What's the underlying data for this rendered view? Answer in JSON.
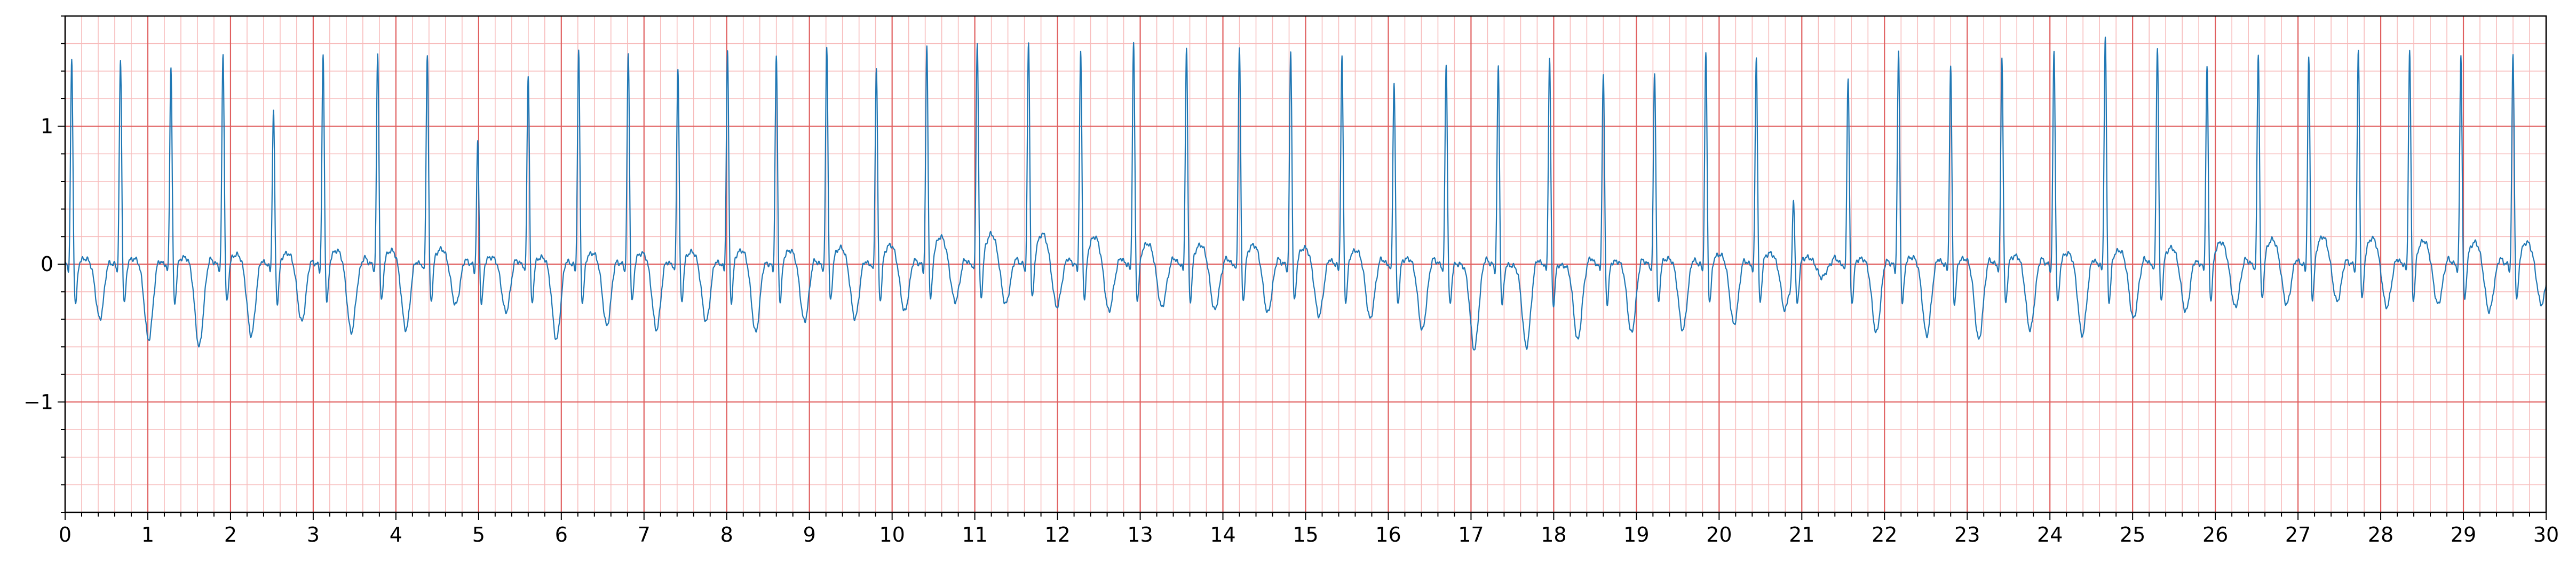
{
  "chart_data": {
    "type": "line",
    "title": "",
    "xlabel": "",
    "ylabel": "",
    "xlim": [
      0,
      30
    ],
    "ylim": [
      -1.8,
      1.8
    ],
    "x_ticks": [
      0,
      1,
      2,
      3,
      4,
      5,
      6,
      7,
      8,
      9,
      10,
      11,
      12,
      13,
      14,
      15,
      16,
      17,
      18,
      19,
      20,
      21,
      22,
      23,
      24,
      25,
      26,
      27,
      28,
      29,
      30
    ],
    "x_tick_labels": [
      "0",
      "1",
      "2",
      "3",
      "4",
      "5",
      "6",
      "7",
      "8",
      "9",
      "10",
      "11",
      "12",
      "13",
      "14",
      "15",
      "16",
      "17",
      "18",
      "19",
      "20",
      "21",
      "22",
      "23",
      "24",
      "25",
      "26",
      "27",
      "28",
      "29",
      "30"
    ],
    "y_ticks": [
      -1,
      0,
      1
    ],
    "y_tick_labels": [
      "−1",
      "0",
      "1"
    ],
    "grid": {
      "major_x_step": 1,
      "major_y_step": 1,
      "minor_x_step": 0.2,
      "minor_y_step": 0.2,
      "major_color": "#e06060",
      "minor_color": "#f7bcbc"
    },
    "colors": {
      "line": "#1f77b4",
      "axis": "#000000"
    },
    "series": [
      {
        "beats": [
          {
            "t": 0.08,
            "r": 1.5,
            "s": -0.4,
            "st": 0.02
          },
          {
            "t": 0.67,
            "r": 1.5,
            "s": -0.55,
            "st": 0.02
          },
          {
            "t": 1.28,
            "r": 1.45,
            "s": -0.6,
            "st": 0.03
          },
          {
            "t": 1.91,
            "r": 1.55,
            "s": -0.52,
            "st": 0.05
          },
          {
            "t": 2.52,
            "r": 1.13,
            "s": -0.42,
            "st": 0.06
          },
          {
            "t": 3.12,
            "r": 1.52,
            "s": -0.5,
            "st": 0.08
          },
          {
            "t": 3.78,
            "r": 1.55,
            "s": -0.48,
            "st": 0.08
          },
          {
            "t": 4.38,
            "r": 1.55,
            "s": -0.3,
            "st": 0.09
          },
          {
            "t": 4.99,
            "r": 0.9,
            "s": -0.35,
            "st": 0.03
          },
          {
            "t": 5.6,
            "r": 1.4,
            "s": -0.55,
            "st": 0.03
          },
          {
            "t": 6.21,
            "r": 1.56,
            "s": -0.45,
            "st": 0.06
          },
          {
            "t": 6.81,
            "r": 1.55,
            "s": -0.48,
            "st": 0.06
          },
          {
            "t": 7.41,
            "r": 1.45,
            "s": -0.42,
            "st": 0.07
          },
          {
            "t": 8.01,
            "r": 1.56,
            "s": -0.5,
            "st": 0.08
          },
          {
            "t": 8.6,
            "r": 1.52,
            "s": -0.42,
            "st": 0.08
          },
          {
            "t": 9.21,
            "r": 1.6,
            "s": -0.4,
            "st": 0.1
          },
          {
            "t": 9.81,
            "r": 1.45,
            "s": -0.35,
            "st": 0.12
          },
          {
            "t": 10.42,
            "r": 1.58,
            "s": -0.28,
            "st": 0.18
          },
          {
            "t": 11.03,
            "r": 1.63,
            "s": -0.3,
            "st": 0.2
          },
          {
            "t": 11.65,
            "r": 1.62,
            "s": -0.32,
            "st": 0.2
          },
          {
            "t": 12.28,
            "r": 1.55,
            "s": -0.35,
            "st": 0.18
          },
          {
            "t": 12.92,
            "r": 1.62,
            "s": -0.32,
            "st": 0.13
          },
          {
            "t": 13.56,
            "r": 1.58,
            "s": -0.34,
            "st": 0.12
          },
          {
            "t": 14.2,
            "r": 1.6,
            "s": -0.36,
            "st": 0.12
          },
          {
            "t": 14.82,
            "r": 1.56,
            "s": -0.38,
            "st": 0.1
          },
          {
            "t": 15.44,
            "r": 1.52,
            "s": -0.4,
            "st": 0.08
          },
          {
            "t": 16.07,
            "r": 1.35,
            "s": -0.48,
            "st": 0.02
          },
          {
            "t": 16.7,
            "r": 1.48,
            "s": -0.62,
            "st": -0.02
          },
          {
            "t": 17.33,
            "r": 1.45,
            "s": -0.6,
            "st": -0.03
          },
          {
            "t": 17.95,
            "r": 1.52,
            "s": -0.55,
            "st": -0.03
          },
          {
            "t": 18.6,
            "r": 1.4,
            "s": -0.5,
            "st": 0.0
          },
          {
            "t": 19.22,
            "r": 1.42,
            "s": -0.48,
            "st": 0.02
          },
          {
            "t": 19.84,
            "r": 1.55,
            "s": -0.44,
            "st": 0.05
          },
          {
            "t": 20.45,
            "r": 1.52,
            "s": -0.35,
            "st": 0.06
          },
          {
            "t": 20.9,
            "r": 0.52,
            "s": -0.1,
            "st": 0.03
          },
          {
            "t": 21.56,
            "r": 1.38,
            "s": -0.5,
            "st": 0.02
          },
          {
            "t": 22.17,
            "r": 1.55,
            "s": -0.52,
            "st": 0.03
          },
          {
            "t": 22.8,
            "r": 1.45,
            "s": -0.55,
            "st": 0.02
          },
          {
            "t": 23.42,
            "r": 1.52,
            "s": -0.48,
            "st": 0.04
          },
          {
            "t": 24.05,
            "r": 1.56,
            "s": -0.52,
            "st": 0.06
          },
          {
            "t": 24.67,
            "r": 1.66,
            "s": -0.4,
            "st": 0.08
          },
          {
            "t": 25.3,
            "r": 1.6,
            "s": -0.35,
            "st": 0.1
          },
          {
            "t": 25.9,
            "r": 1.45,
            "s": -0.32,
            "st": 0.14
          },
          {
            "t": 26.52,
            "r": 1.55,
            "s": -0.3,
            "st": 0.16
          },
          {
            "t": 27.13,
            "r": 1.5,
            "s": -0.28,
            "st": 0.18
          },
          {
            "t": 27.73,
            "r": 1.56,
            "s": -0.32,
            "st": 0.17
          },
          {
            "t": 28.35,
            "r": 1.56,
            "s": -0.3,
            "st": 0.15
          },
          {
            "t": 28.97,
            "r": 1.53,
            "s": -0.35,
            "st": 0.14
          },
          {
            "t": 29.6,
            "r": 1.53,
            "s": -0.3,
            "st": 0.14
          }
        ]
      }
    ]
  }
}
